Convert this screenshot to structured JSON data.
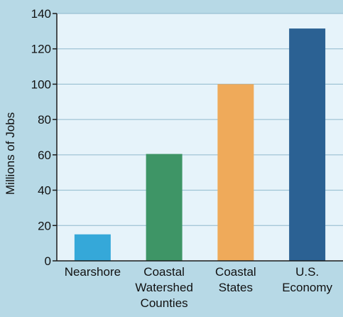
{
  "colors": {
    "page_background": "#b7d9e6",
    "plot_background": "#e6f3fa",
    "grid": "#8fb8cc",
    "axis": "#1a1a1a"
  },
  "chart_data": {
    "type": "bar",
    "title": "",
    "xlabel": "",
    "ylabel": "Millions of Jobs",
    "ylim": [
      0,
      140
    ],
    "yticks": [
      0,
      20,
      40,
      60,
      80,
      100,
      120,
      140
    ],
    "grid": true,
    "categories": [
      [
        "Nearshore"
      ],
      [
        "Coastal",
        "Watershed",
        "Counties"
      ],
      [
        "Coastal",
        "States"
      ],
      [
        "U.S.",
        "Economy"
      ]
    ],
    "values": [
      15,
      60.5,
      100,
      131.5
    ],
    "bar_colors": [
      "#35a8d9",
      "#3e9566",
      "#efaa5a",
      "#2b6193"
    ]
  }
}
